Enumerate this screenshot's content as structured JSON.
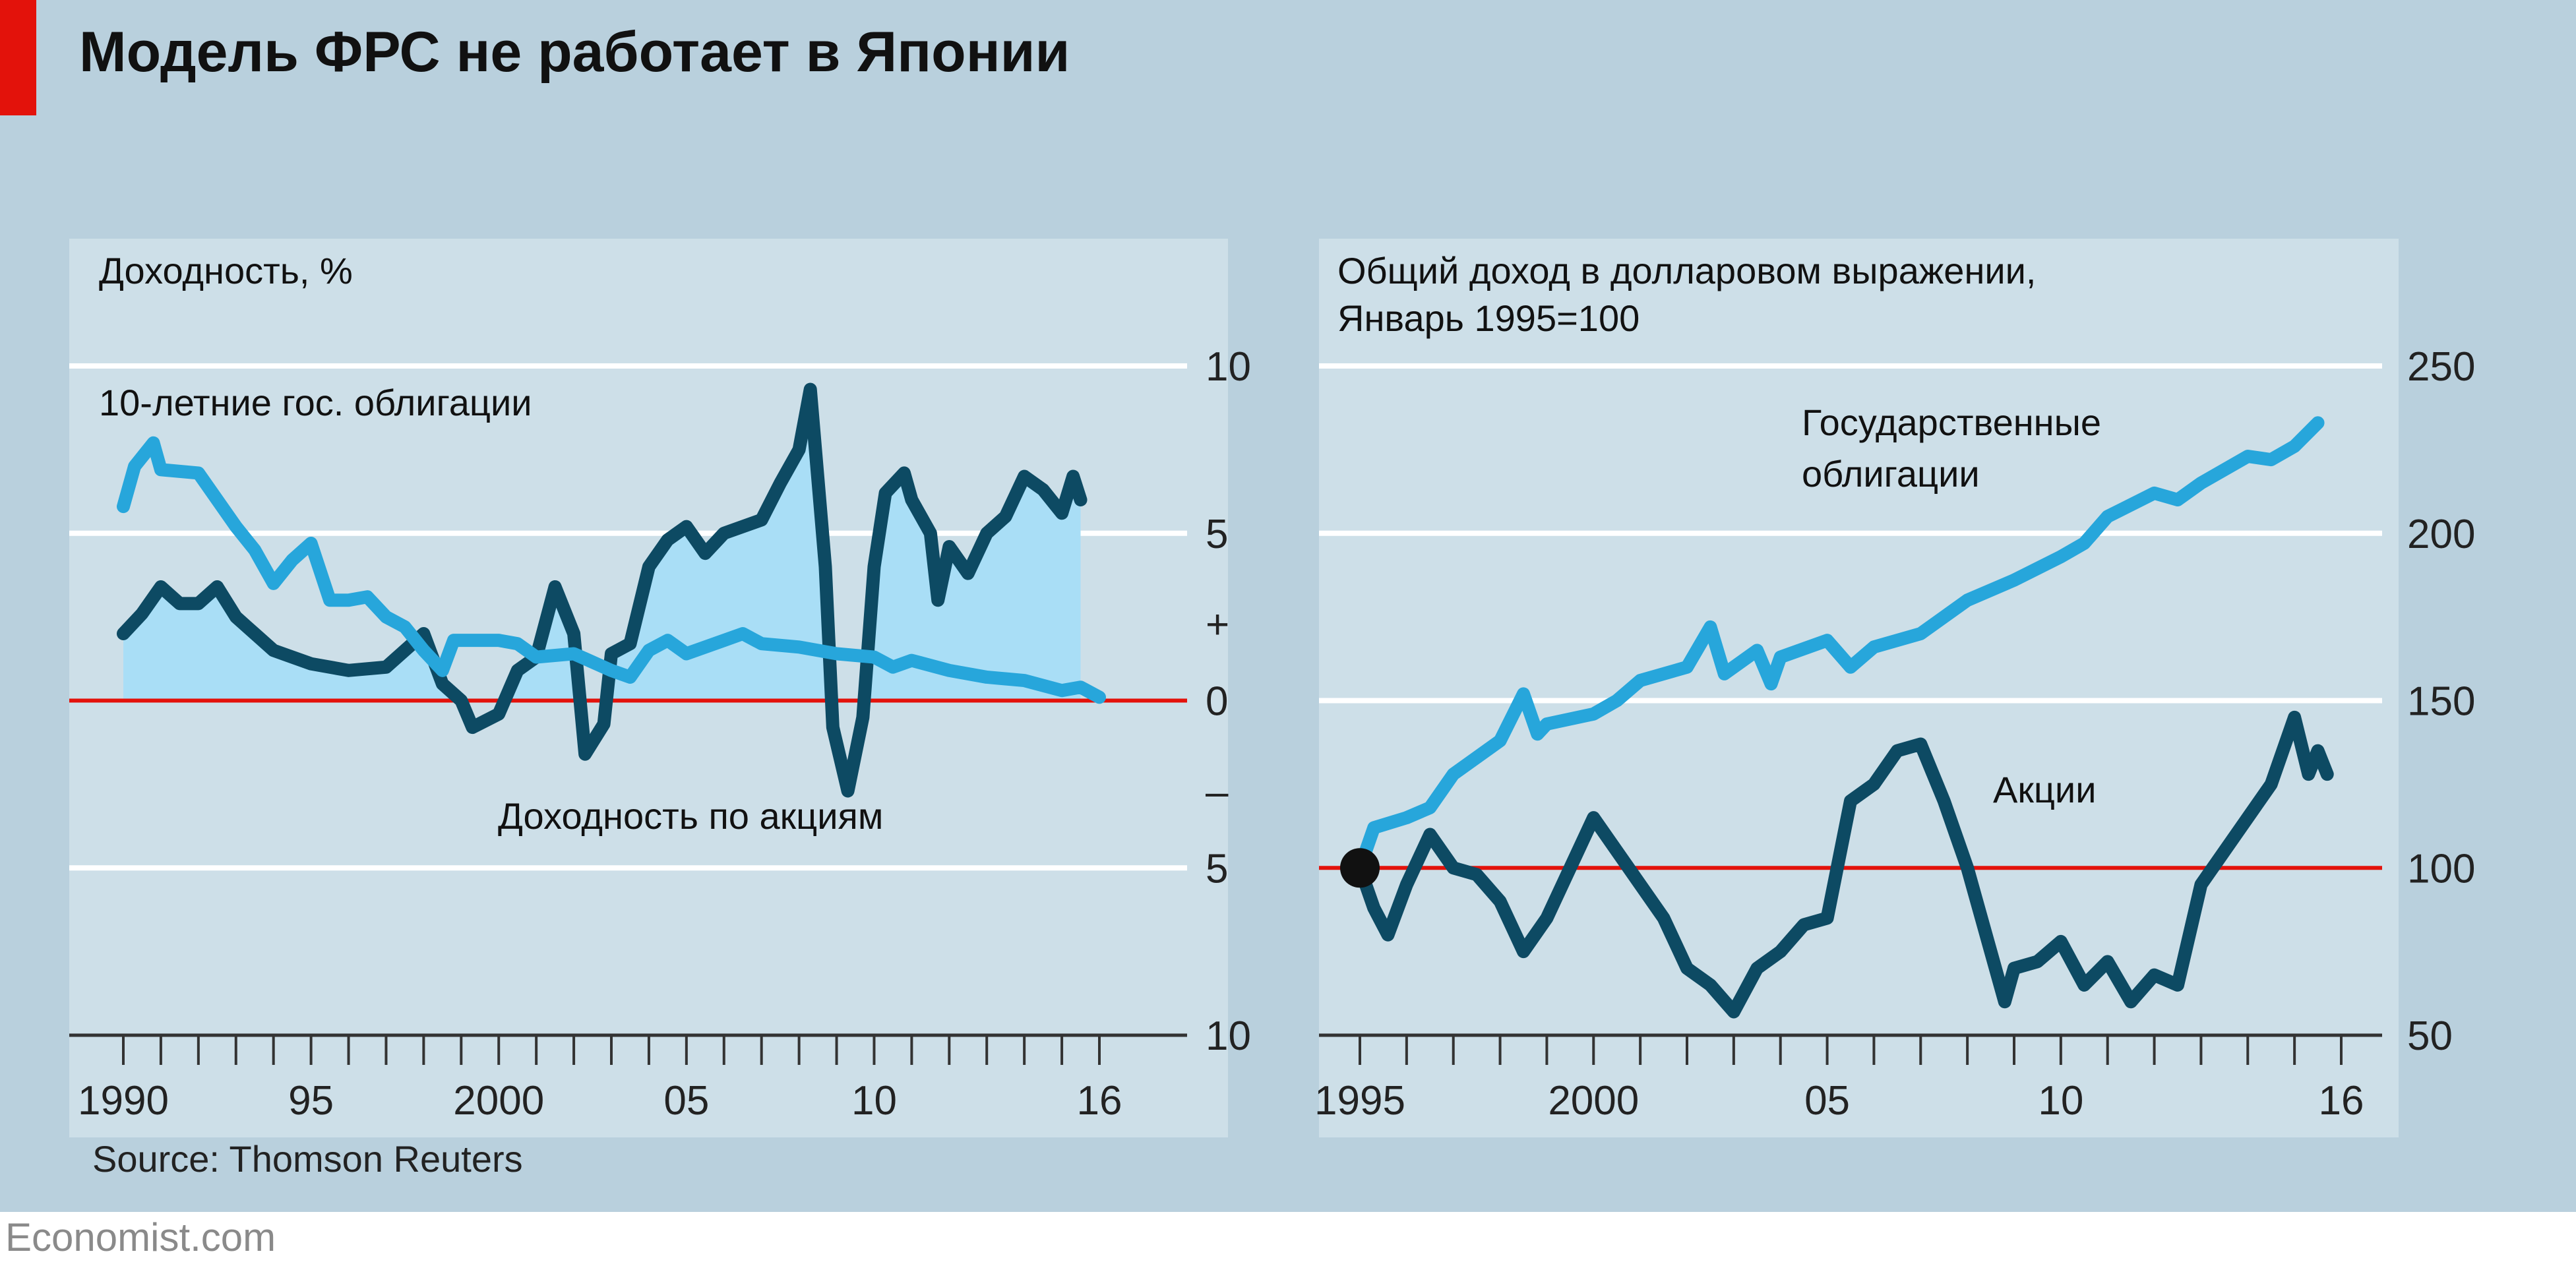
{
  "title": "Модель ФРС не работает в Японии",
  "source": "Source: Thomson Reuters",
  "footer": "Economist.com",
  "colors": {
    "bonds": "#27a6db",
    "stocks": "#0d4a63",
    "fill": "#a9def6",
    "zero": "#e3120b",
    "accent": "#e3120b"
  },
  "chart_data": [
    {
      "type": "line",
      "title": "Доходность, %",
      "ylabel": "Доходность, %",
      "ylim": [
        -10,
        10
      ],
      "xlim": [
        1990,
        2016
      ],
      "yticks": [
        "10",
        "5",
        "+",
        "0",
        "–",
        "5",
        "10"
      ],
      "xticks": [
        "1990",
        "95",
        "2000",
        "05",
        "10",
        "16"
      ],
      "series": [
        {
          "name": "10-летние гос. облигации",
          "x": [
            1990,
            1990.3,
            1990.8,
            1991,
            1992,
            1992.5,
            1993,
            1993.5,
            1994,
            1994.5,
            1995,
            1995.5,
            1996,
            1996.5,
            1997,
            1997.5,
            1998,
            1998.5,
            1998.8,
            1999,
            2000,
            2000.5,
            2001,
            2002,
            2003,
            2003.5,
            2004,
            2004.5,
            2005,
            2006,
            2006.5,
            2007,
            2008,
            2009,
            2010,
            2010.5,
            2011,
            2012,
            2013,
            2014,
            2015,
            2015.5,
            2016
          ],
          "y": [
            5.8,
            7.0,
            7.7,
            6.9,
            6.8,
            6.0,
            5.2,
            4.5,
            3.5,
            4.2,
            4.7,
            3.0,
            3.0,
            3.1,
            2.5,
            2.2,
            1.5,
            0.9,
            1.8,
            1.8,
            1.8,
            1.7,
            1.3,
            1.4,
            0.9,
            0.7,
            1.5,
            1.8,
            1.4,
            1.8,
            2.0,
            1.7,
            1.6,
            1.4,
            1.3,
            1.0,
            1.2,
            0.9,
            0.7,
            0.6,
            0.3,
            0.4,
            0.1
          ]
        },
        {
          "name": "Доходность по акциям",
          "x": [
            1990,
            1990.5,
            1991,
            1991.5,
            1992,
            1992.5,
            1993,
            1993.5,
            1994,
            1995,
            1996,
            1997,
            1997.5,
            1998,
            1998.5,
            1999,
            1999.3,
            2000,
            2000.5,
            2001,
            2001.5,
            2002,
            2002.3,
            2002.8,
            2003,
            2003.5,
            2004,
            2004.5,
            2005,
            2005.5,
            2006,
            2007,
            2007.5,
            2008,
            2008.3,
            2008.7,
            2008.9,
            2009.3,
            2009.7,
            2010,
            2010.3,
            2010.8,
            2011,
            2011.5,
            2011.7,
            2012,
            2012.5,
            2013,
            2013.5,
            2014,
            2014.5,
            2015,
            2015.3,
            2015.5
          ],
          "y": [
            2.0,
            2.6,
            3.4,
            2.9,
            2.9,
            3.4,
            2.5,
            2.0,
            1.5,
            1.1,
            0.9,
            1.0,
            1.5,
            2.0,
            0.5,
            0.0,
            -0.8,
            -0.4,
            0.9,
            1.3,
            3.4,
            2.0,
            -1.6,
            -0.7,
            1.4,
            1.7,
            4.0,
            4.8,
            5.2,
            4.4,
            5.0,
            5.4,
            6.5,
            7.5,
            9.3,
            4.0,
            -0.8,
            -2.7,
            -0.5,
            4.0,
            6.2,
            6.8,
            6.0,
            5.0,
            3.0,
            4.6,
            3.8,
            5.0,
            5.5,
            6.7,
            6.3,
            5.6,
            6.7,
            6.0
          ]
        }
      ],
      "annotations": [
        "10-летние гос. облигации",
        "Доходность по акциям"
      ]
    },
    {
      "type": "line",
      "title": "Общий доход в долларовом выражении,",
      "subtitle": "Январь 1995=100",
      "ylim": [
        50,
        250
      ],
      "xlim": [
        1995,
        2016
      ],
      "yticks": [
        "250",
        "200",
        "150",
        "100",
        "50"
      ],
      "xticks": [
        "1995",
        "2000",
        "05",
        "10",
        "16"
      ],
      "series": [
        {
          "name": "Государственные облигации",
          "x": [
            1995,
            1995.3,
            1996,
            1996.5,
            1997,
            1998,
            1998.5,
            1998.8,
            1999,
            2000,
            2000.5,
            2001,
            2002,
            2002.5,
            2002.8,
            2003.5,
            2003.8,
            2004,
            2005,
            2005.5,
            2006,
            2007,
            2008,
            2009,
            2010,
            2010.5,
            2011,
            2012,
            2012.5,
            2013,
            2014,
            2014.5,
            2015,
            2015.5
          ],
          "y": [
            100,
            112,
            115,
            118,
            128,
            138,
            152,
            140,
            143,
            146,
            150,
            156,
            160,
            172,
            158,
            165,
            155,
            163,
            168,
            160,
            166,
            170,
            180,
            186,
            193,
            197,
            205,
            212,
            210,
            215,
            223,
            222,
            226,
            233
          ]
        },
        {
          "name": "Акции",
          "x": [
            1995,
            1995.3,
            1995.6,
            1996,
            1996.5,
            1997,
            1997.5,
            1998,
            1998.5,
            1999,
            1999.5,
            2000,
            2000.5,
            2001,
            2001.5,
            2002,
            2002.5,
            2003,
            2003.5,
            2004,
            2004.5,
            2005,
            2005.5,
            2006,
            2006.5,
            2007,
            2007.5,
            2008,
            2008.5,
            2008.8,
            2009,
            2009.5,
            2010,
            2010.5,
            2011,
            2011.5,
            2012,
            2012.5,
            2013,
            2013.5,
            2014,
            2014.5,
            2015,
            2015.3,
            2015.5,
            2015.7
          ],
          "y": [
            100,
            88,
            80,
            95,
            110,
            100,
            98,
            90,
            75,
            85,
            100,
            115,
            105,
            95,
            85,
            70,
            65,
            57,
            70,
            75,
            83,
            85,
            120,
            125,
            135,
            137,
            120,
            100,
            75,
            60,
            70,
            72,
            78,
            65,
            72,
            60,
            68,
            65,
            95,
            105,
            115,
            125,
            145,
            128,
            135,
            128
          ]
        }
      ],
      "annotations": [
        "Государственные облигации",
        "Акции"
      ],
      "marker": {
        "x": 1995,
        "y": 100
      }
    }
  ]
}
